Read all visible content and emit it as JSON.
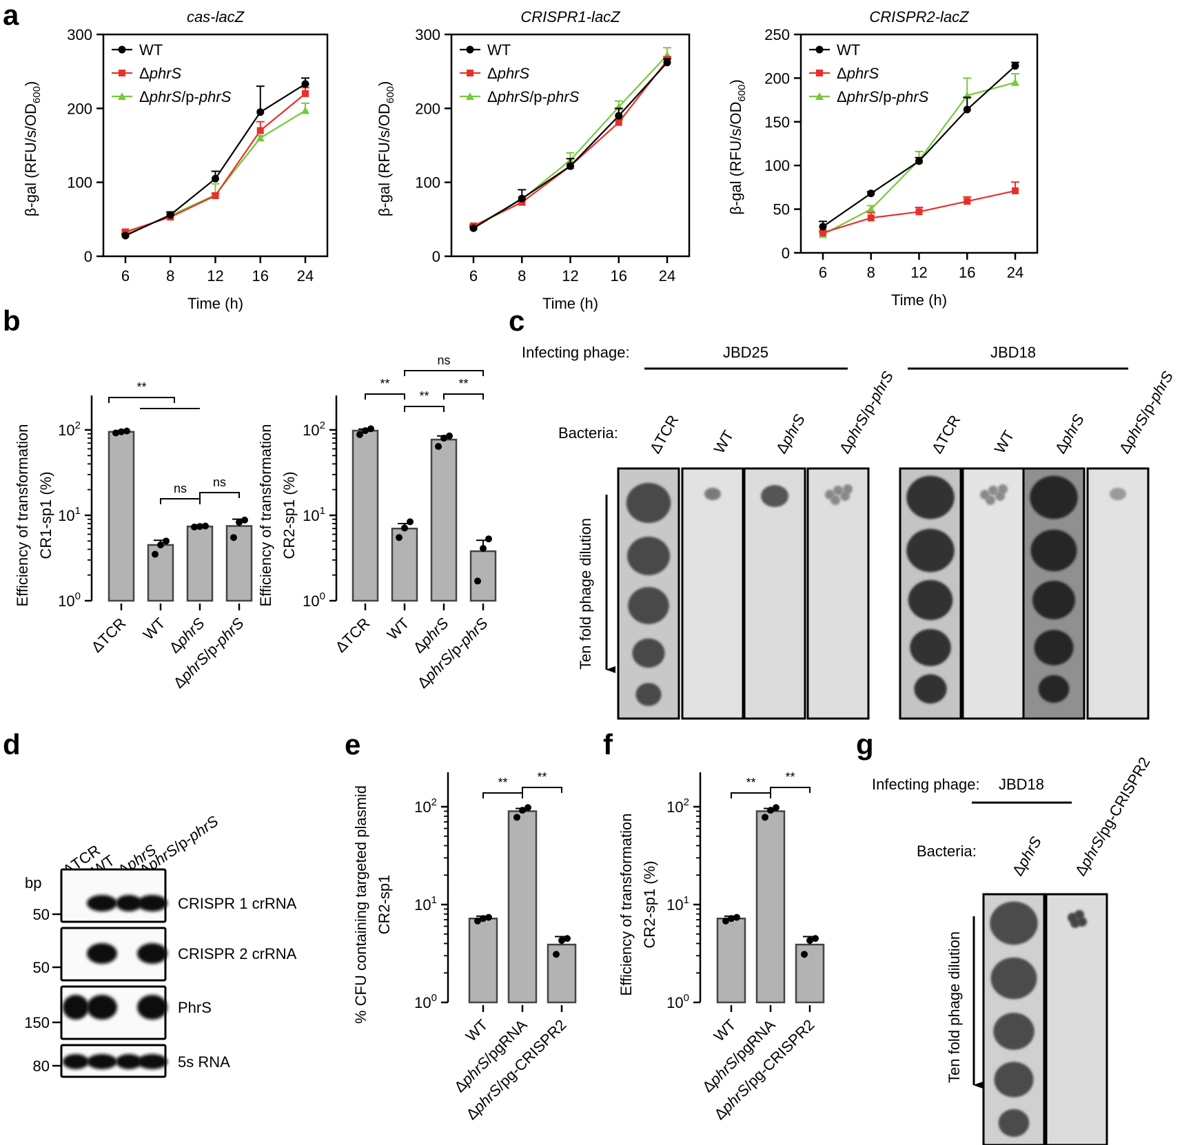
{
  "panel_letters": {
    "a": "a",
    "b": "b",
    "c": "c",
    "d": "d",
    "e": "e",
    "f": "f",
    "g": "g"
  },
  "colors": {
    "WT": "#000000",
    "dphrS": "#e8302a",
    "comp": "#78c83a",
    "bar": "#b3b3b3"
  },
  "chart_data": [
    {
      "id": "a1",
      "type": "line",
      "title": "cas-lacZ",
      "categories": [
        "6",
        "8",
        "12",
        "16",
        "24"
      ],
      "ylim": [
        0,
        300
      ],
      "yticks": [
        "0",
        "100",
        "200",
        "300"
      ],
      "xlabel": "Time  (h)",
      "ylabel": "β-gal (RFU/s/OD600)",
      "series": [
        {
          "name": "WT",
          "values": [
            28,
            56,
            105,
            195,
            233
          ],
          "errors": [
            2,
            4,
            10,
            35,
            8
          ]
        },
        {
          "name": "ΔphrS",
          "values": [
            33,
            53,
            82,
            170,
            220
          ],
          "errors": [
            2,
            3,
            3,
            12,
            8
          ]
        },
        {
          "name": "ΔphrS/p-phrS",
          "values": [
            30,
            55,
            83,
            160,
            197
          ],
          "errors": [
            2,
            3,
            15,
            3,
            10
          ]
        }
      ]
    },
    {
      "id": "a2",
      "type": "line",
      "title": "CRISPR1-lacZ",
      "categories": [
        "6",
        "8",
        "12",
        "16",
        "24"
      ],
      "ylim": [
        0,
        300
      ],
      "yticks": [
        "0",
        "100",
        "200",
        "300"
      ],
      "xlabel": "Time  (h)",
      "ylabel": "β-gal (RFU/s/OD600)",
      "series": [
        {
          "name": "WT",
          "values": [
            38,
            78,
            122,
            190,
            262
          ],
          "errors": [
            2,
            12,
            10,
            10,
            5
          ]
        },
        {
          "name": "ΔphrS",
          "values": [
            41,
            73,
            122,
            181,
            265
          ],
          "errors": [
            2,
            3,
            4,
            4,
            5
          ]
        },
        {
          "name": "ΔphrS/p-phrS",
          "values": [
            40,
            77,
            130,
            202,
            272
          ],
          "errors": [
            2,
            3,
            10,
            8,
            10
          ]
        }
      ]
    },
    {
      "id": "a3",
      "type": "line",
      "title": "CRISPR2-lacZ",
      "categories": [
        "6",
        "8",
        "12",
        "16",
        "24"
      ],
      "ylim": [
        0,
        250
      ],
      "yticks": [
        "0",
        "50",
        "100",
        "150",
        "200",
        "250"
      ],
      "xlabel": "Time  (h)",
      "ylabel": "β-gal (RFU/s/OD600)",
      "series": [
        {
          "name": "WT",
          "values": [
            30,
            68,
            105,
            164,
            214
          ],
          "errors": [
            6,
            2,
            4,
            14,
            4
          ]
        },
        {
          "name": "ΔphrS",
          "values": [
            23,
            40,
            47,
            59,
            71
          ],
          "errors": [
            2,
            6,
            5,
            5,
            10
          ]
        },
        {
          "name": "ΔphrS/p-phrS",
          "values": [
            21,
            50,
            106,
            180,
            195
          ],
          "errors": [
            2,
            4,
            10,
            20,
            10
          ]
        }
      ]
    },
    {
      "id": "b1",
      "type": "bar",
      "scale": "log",
      "ylim": [
        1,
        100
      ],
      "ylabel1": "Efficiency of transformation",
      "ylabel2": "CR1-sp1 (%)",
      "categories": [
        "ΔTCR",
        "WT",
        "ΔphrS",
        "ΔphrS/p-phrS"
      ],
      "values": [
        95,
        4.5,
        7.4,
        7.5
      ],
      "errors": [
        3,
        0.6,
        0.3,
        1.5
      ],
      "points": [
        [
          92,
          95,
          97
        ],
        [
          3.5,
          4.5,
          5.0
        ],
        [
          7.3,
          7.4,
          7.5
        ],
        [
          5.5,
          8.3,
          8.8
        ]
      ],
      "significance": [
        {
          "label": "**"
        },
        {
          "label": "ns"
        },
        {
          "label": "ns"
        }
      ]
    },
    {
      "id": "b2",
      "type": "bar",
      "scale": "log",
      "ylim": [
        1,
        100
      ],
      "ylabel1": "Efficiency of transformation",
      "ylabel2": "CR2-sp1 (%)",
      "categories": [
        "ΔTCR",
        "WT",
        "ΔphrS",
        "ΔphrS/p-phrS"
      ],
      "values": [
        98,
        7,
        77,
        3.8
      ],
      "errors": [
        4,
        1,
        8,
        1.3
      ],
      "points": [
        [
          88,
          98,
          103
        ],
        [
          5.5,
          7.1,
          8.4
        ],
        [
          64,
          80,
          85
        ],
        [
          1.7,
          4.1,
          5.3
        ]
      ],
      "significance": [
        {
          "label": "ns"
        },
        {
          "label": "**"
        },
        {
          "label": "**"
        },
        {
          "label": "**"
        }
      ]
    },
    {
      "id": "e",
      "type": "bar",
      "scale": "log",
      "ylim": [
        1,
        100
      ],
      "ylabel1": "% CFU containing targeted plasmid",
      "ylabel2": "CR2-sp1",
      "categories": [
        "WT",
        "ΔphrS/pgRNA",
        "ΔphrS/pg-CRISPR2"
      ],
      "values": [
        7.2,
        90,
        3.9
      ],
      "errors": [
        0.4,
        6,
        0.8
      ],
      "points": [
        [
          6.8,
          7.2,
          7.4
        ],
        [
          78,
          92,
          98
        ],
        [
          3.1,
          4.3,
          4.5
        ]
      ],
      "significance": [
        {
          "label": "**"
        },
        {
          "label": "**"
        }
      ]
    },
    {
      "id": "f",
      "type": "bar",
      "scale": "log",
      "ylim": [
        1,
        100
      ],
      "ylabel1": "Efficiency of transformation",
      "ylabel2": "CR2-sp1 (%)",
      "categories": [
        "WT",
        "ΔphrS/pgRNA",
        "ΔphrS/pg-CRISPR2"
      ],
      "values": [
        7.2,
        90,
        3.9
      ],
      "errors": [
        0.4,
        6,
        0.8
      ],
      "points": [
        [
          6.8,
          7.2,
          7.4
        ],
        [
          78,
          92,
          98
        ],
        [
          3.1,
          4.3,
          4.5
        ]
      ],
      "significance": [
        {
          "label": "**"
        },
        {
          "label": "**"
        }
      ]
    }
  ],
  "panel_c": {
    "infecting_label": "Infecting phage:",
    "phage1": "JBD25",
    "phage2": "JBD18",
    "bacteria_label": "Bacteria:",
    "strains": [
      "ΔTCR",
      "WT",
      "ΔphrS",
      "ΔphrS/p-phrS",
      "ΔTCR",
      "WT",
      "ΔphrS",
      "ΔphrS/p-phrS"
    ],
    "dilution_label": "Ten fold phage dilution"
  },
  "panel_d": {
    "lanes": [
      "ΔTCR",
      "WT",
      "ΔphrS",
      "ΔphrS/p-phrS"
    ],
    "bp_label": "bp",
    "markers": [
      "50",
      "50",
      "150",
      "80"
    ],
    "rows": [
      "CRISPR 1 crRNA",
      "CRISPR 2 crRNA",
      "PhrS",
      "5s RNA"
    ]
  },
  "panel_g": {
    "infecting_label": "Infecting phage:",
    "phage": "JBD18",
    "bacteria_label": "Bacteria:",
    "strains": [
      "ΔphrS",
      "ΔphrS/pg-CRISPR2"
    ],
    "dilution_label": "Ten fold phage dilution"
  }
}
